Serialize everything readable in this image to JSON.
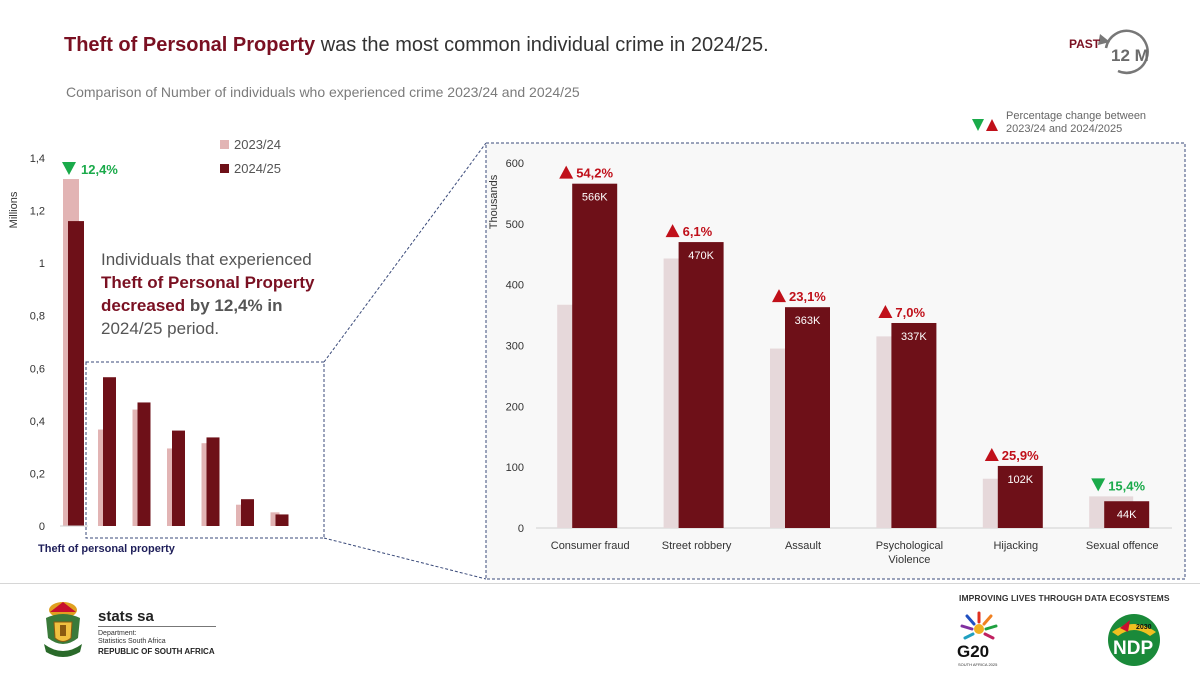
{
  "header": {
    "headline_emphasis": "Theft of Personal Property",
    "headline_rest": " was the most common individual crime in 2024/25.",
    "subtitle": "Comparison of Number of individuals who experienced crime 2023/24 and 2024/25",
    "badge_past": "PAST",
    "badge_period": "12 M"
  },
  "legend": {
    "series_2023": "2023/24",
    "series_2024": "2024/25",
    "pct_change_label": "Percentage change between 2023/24 and 2024/2025"
  },
  "callout": {
    "line1": "Individuals that experienced",
    "emphasis": "Theft of Personal Property",
    "bold": "decreased",
    "bold2": "by 12,4% in",
    "line3": "2024/25 period."
  },
  "colors": {
    "series_2023_left": "#e2b4b4",
    "series_2023_right": "#e6d8da",
    "series_2024": "#6e1018",
    "increase": "#c0101a",
    "decrease": "#1aaa4a",
    "brand": "#7a1022"
  },
  "chart_data": [
    {
      "type": "bar",
      "ylabel": "Millions",
      "ylim": [
        0,
        1.4
      ],
      "yticks": [
        "0",
        "0,2",
        "0,4",
        "0,6",
        "0,8",
        "1",
        "1,2",
        "1,4"
      ],
      "main_category": "Theft of personal property",
      "main_values": [
        1.32,
        1.16
      ],
      "main_change": {
        "direction": "down",
        "label": "12,4%"
      },
      "inset_values": {
        "2023/24": [
          0.367,
          0.443,
          0.295,
          0.315,
          0.081,
          0.052
        ],
        "2024/25": [
          0.566,
          0.47,
          0.363,
          0.337,
          0.102,
          0.044
        ]
      }
    },
    {
      "type": "bar",
      "ylabel": "Thousands",
      "ylim": [
        0,
        600
      ],
      "yticks": [
        "0",
        "100",
        "200",
        "300",
        "400",
        "500",
        "600"
      ],
      "categories": [
        "Consumer fraud",
        "Street robbery",
        "Assault",
        "Psychological Violence",
        "Hijacking",
        "Sexual offence"
      ],
      "category_lines": [
        [
          "Consumer fraud"
        ],
        [
          "Street robbery"
        ],
        [
          "Assault"
        ],
        [
          "Psychological",
          "Violence"
        ],
        [
          "Hijacking"
        ],
        [
          "Sexual offence"
        ]
      ],
      "series": [
        {
          "name": "2023/24",
          "values": [
            367,
            443,
            295,
            315,
            81,
            52
          ]
        },
        {
          "name": "2024/25",
          "values": [
            566,
            470,
            363,
            337,
            102,
            44
          ]
        }
      ],
      "data_labels": [
        "566K",
        "470K",
        "363K",
        "337K",
        "102K",
        "44K"
      ],
      "changes": [
        {
          "direction": "up",
          "label": "54,2%"
        },
        {
          "direction": "up",
          "label": "6,1%"
        },
        {
          "direction": "up",
          "label": "23,1%"
        },
        {
          "direction": "up",
          "label": "7,0%"
        },
        {
          "direction": "up",
          "label": "25,9%"
        },
        {
          "direction": "down",
          "label": "15,4%"
        }
      ]
    }
  ],
  "footer": {
    "logo_brand": "stats sa",
    "logo_dept_line1": "Department:",
    "logo_dept_line2": "Statistics South Africa",
    "logo_country": "REPUBLIC OF SOUTH AFRICA",
    "tagline": "IMPROVING LIVES THROUGH DATA ECOSYSTEMS",
    "g20_text": "G20",
    "g20_sub": "SOUTH AFRICA 2025",
    "ndp_text": "NDP",
    "ndp_year": "2030"
  }
}
